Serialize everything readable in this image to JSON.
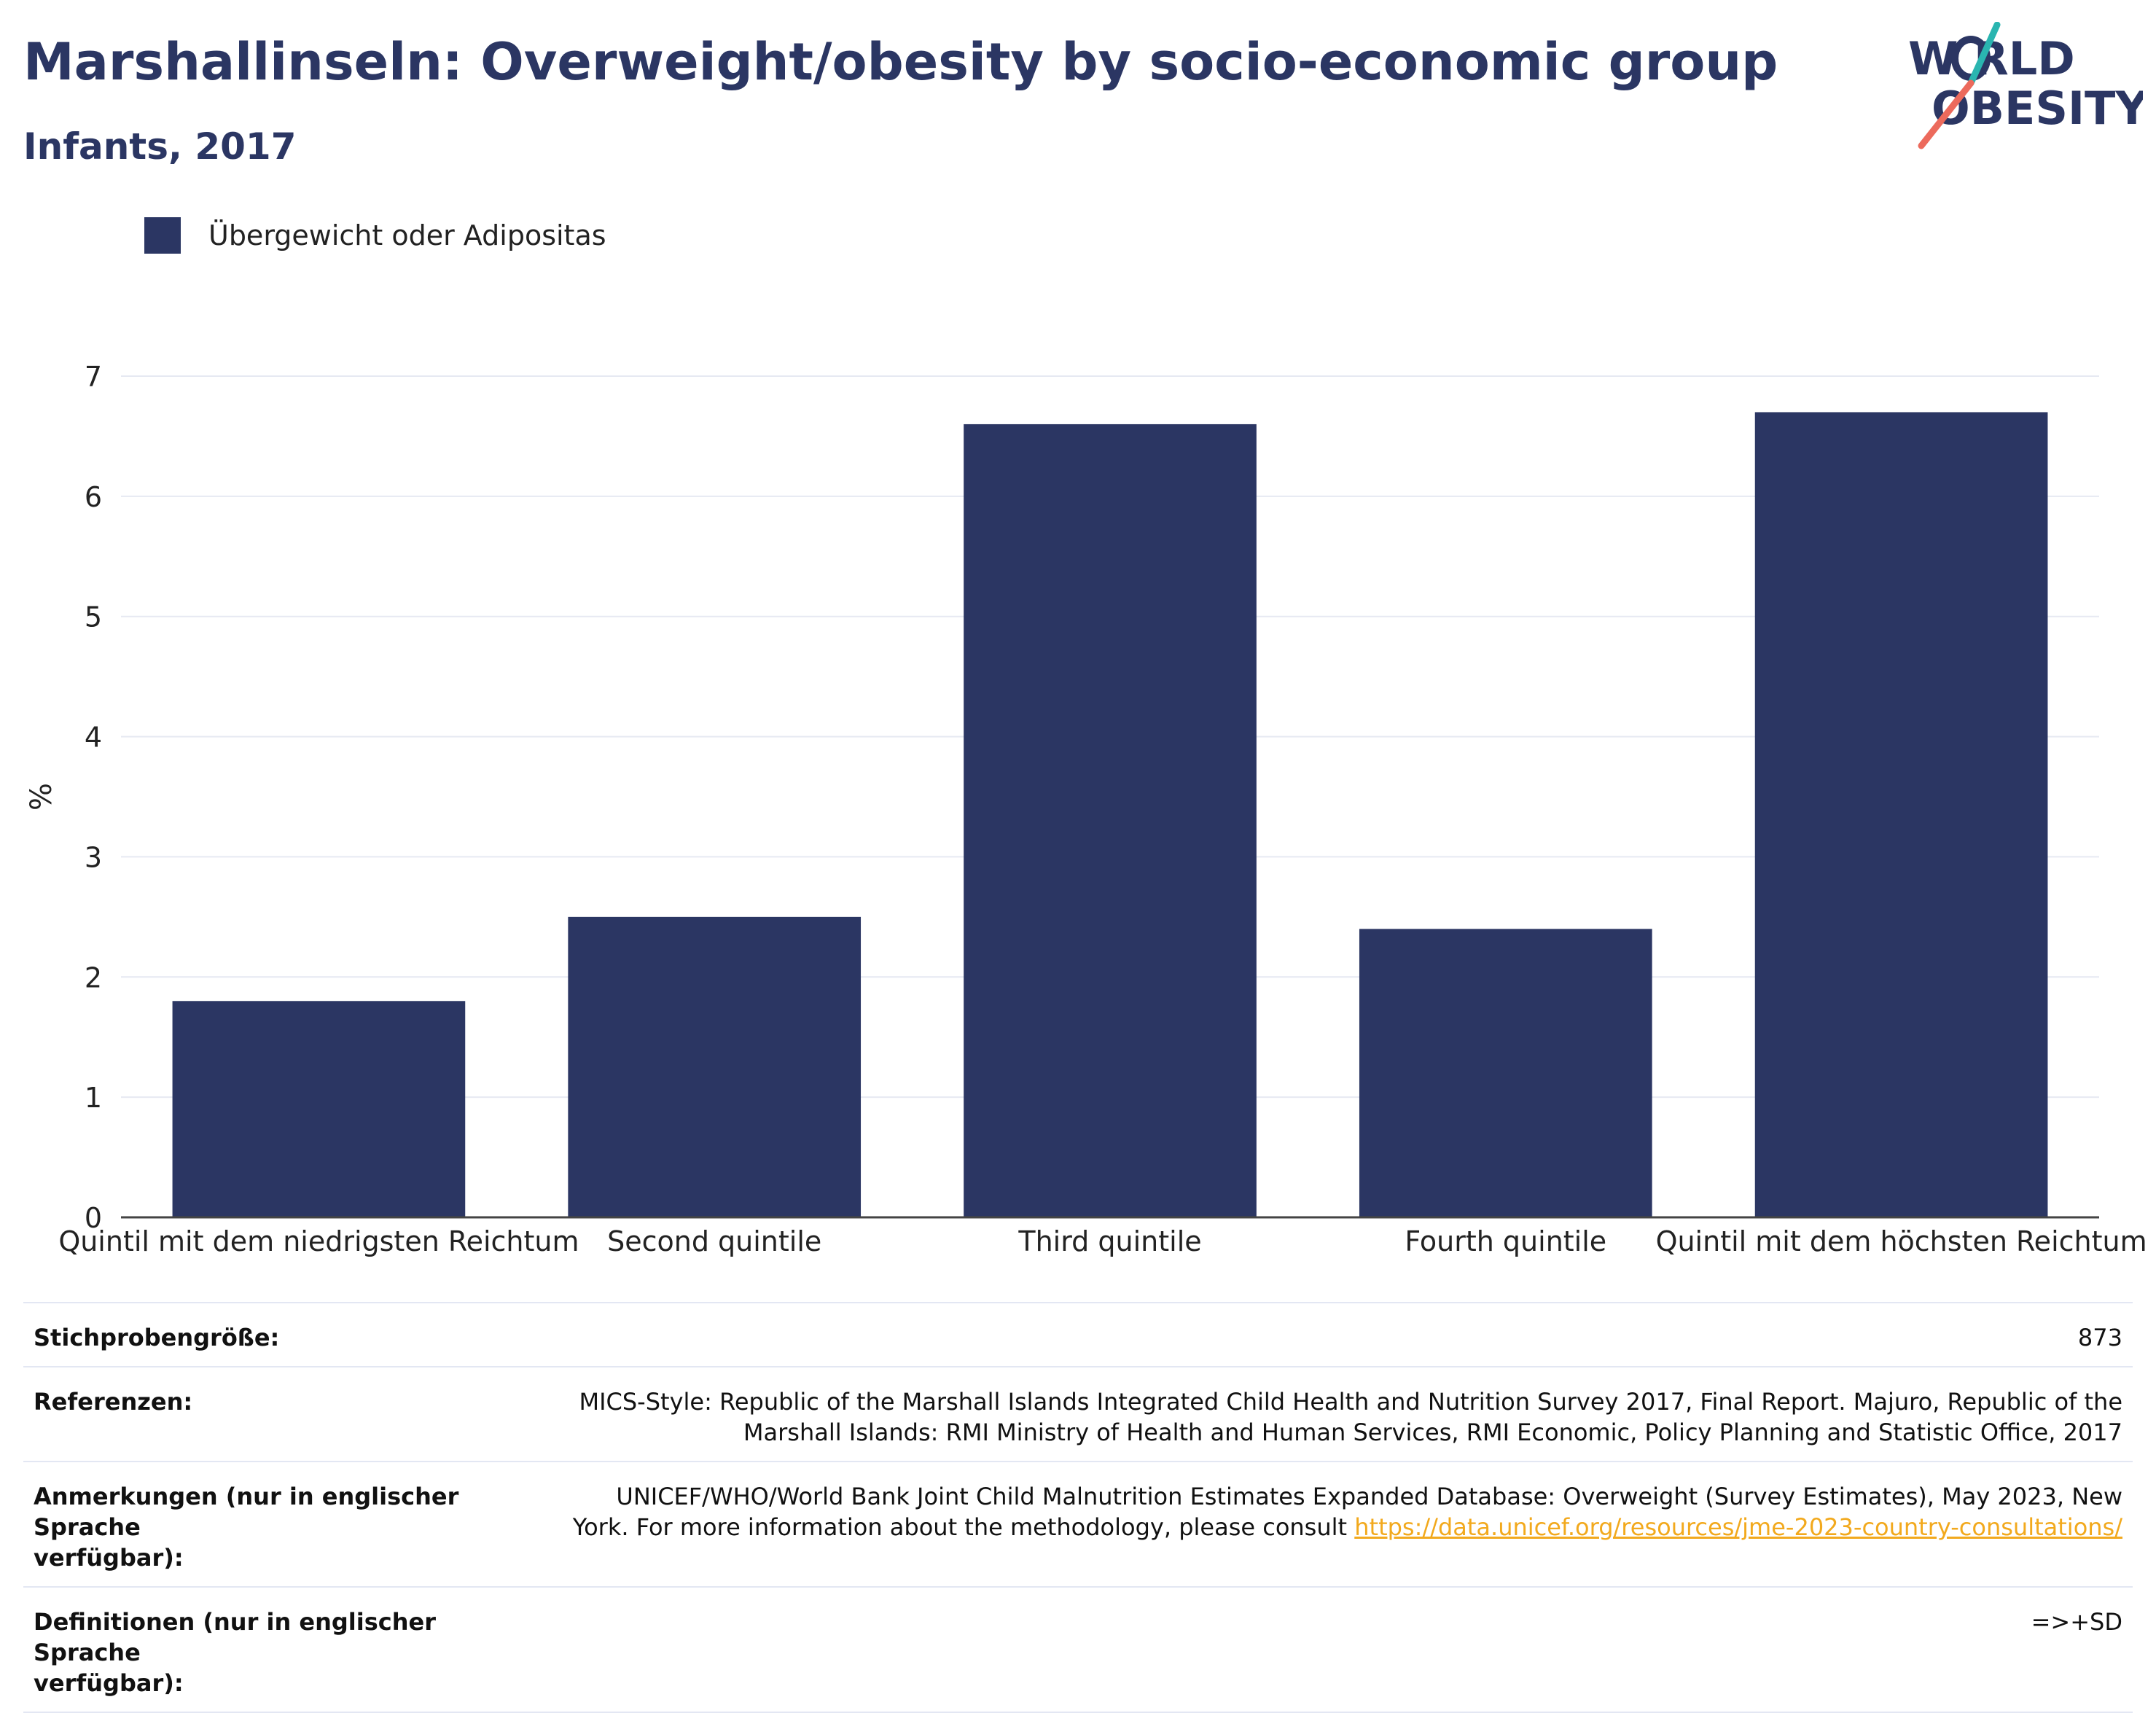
{
  "header": {
    "title": "Marshallinseln: Overweight/obesity by socio-economic group",
    "subtitle": "Infants, 2017"
  },
  "logo": {
    "line1": "W RLD",
    "line2": "OBESITY",
    "colors": {
      "text": "#2b3663",
      "teal": "#2ab5b0",
      "coral": "#ec6a5c"
    }
  },
  "legend": {
    "label": "Übergewicht oder Adipositas",
    "color": "#2b3663"
  },
  "chart_data": {
    "type": "bar",
    "categories": [
      "Quintil mit dem niedrigsten Reichtum",
      "Second quintile",
      "Third quintile",
      "Fourth quintile",
      "Quintil mit dem höchsten Reichtum"
    ],
    "series": [
      {
        "name": "Übergewicht oder Adipositas",
        "values": [
          1.8,
          2.5,
          6.6,
          2.4,
          6.7
        ],
        "color": "#2b3663"
      }
    ],
    "xlabel": "",
    "ylabel": "%",
    "ylim": [
      0,
      7
    ],
    "yticks": [
      0,
      1,
      2,
      3,
      4,
      5,
      6,
      7
    ],
    "grid": true,
    "legend_position": "top-left"
  },
  "meta": {
    "sample_size_label": "Stichprobengröße:",
    "sample_size_value": "873",
    "references_label": "Referenzen:",
    "references_line1": "MICS-Style: Republic of the Marshall Islands Integrated Child Health and Nutrition Survey 2017, Final Report. Majuro, Republic of the",
    "references_line2": "Marshall Islands: RMI Ministry of Health and Human Services, RMI Economic, Policy Planning and Statistic Office, 2017",
    "notes_label_line1": "Anmerkungen (nur in englischer Sprache",
    "notes_label_line2": "verfügbar):",
    "notes_line1": "UNICEF/WHO/World Bank Joint Child Malnutrition Estimates Expanded Database: Overweight (Survey Estimates), May 2023, New",
    "notes_line2": "York. For more information about the methodology, please consult ",
    "notes_link": "https://data.unicef.org/resources/jme-2023-country-consultations/",
    "definitions_label_line1": "Definitionen (nur in englischer Sprache",
    "definitions_label_line2": "verfügbar):",
    "definitions_value": "=>+SD"
  }
}
